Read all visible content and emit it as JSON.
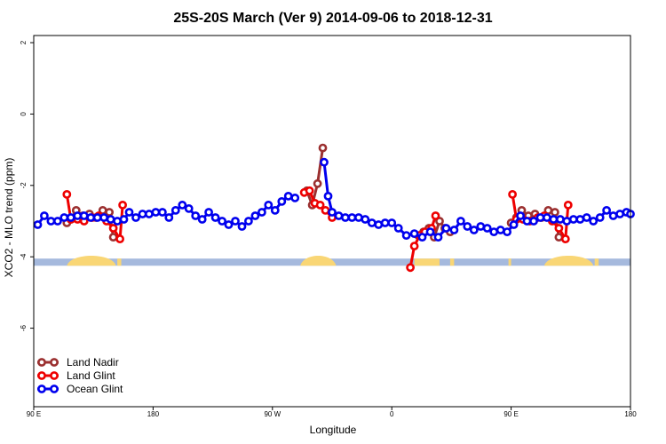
{
  "chart_data": {
    "type": "line",
    "title": "25S-20S March (Ver 9)   2014-09-06 to 2018-12-31",
    "xlabel": "Longitude",
    "ylabel": "XCO2 - MLO trend (ppm)",
    "xlim": [
      90,
      540
    ],
    "ylim": [
      -8.2,
      2.2
    ],
    "x_ticks": [
      {
        "value": 90,
        "label": "90 E"
      },
      {
        "value": 180,
        "label": "180"
      },
      {
        "value": 270,
        "label": "90 W"
      },
      {
        "value": 360,
        "label": "0"
      },
      {
        "value": 450,
        "label": "90 E"
      },
      {
        "value": 540,
        "label": "180"
      }
    ],
    "y_ticks": [
      {
        "value": 2,
        "label": "2"
      },
      {
        "value": 0,
        "label": "0"
      },
      {
        "value": -2,
        "label": "-2"
      },
      {
        "value": -4,
        "label": "-4"
      },
      {
        "value": -6,
        "label": "-6"
      }
    ],
    "legend_position": "bottom-left",
    "land_sea_band": {
      "y_top": -4.05,
      "y_bottom": -4.25,
      "ocean_color": "#a5b9dd",
      "land_color": "#f9d675",
      "land_segments": [
        {
          "x0": 115,
          "x1": 152,
          "shape": "bump"
        },
        {
          "x0": 153,
          "x1": 156,
          "shape": "flat"
        },
        {
          "x0": 291,
          "x1": 318,
          "shape": "bump"
        },
        {
          "x0": 377,
          "x1": 396,
          "shape": "flat"
        },
        {
          "x0": 404,
          "x1": 407,
          "shape": "flat"
        },
        {
          "x0": 448,
          "x1": 450,
          "shape": "flat"
        },
        {
          "x0": 115,
          "x1": 152,
          "shape": "bump",
          "offset": 360
        },
        {
          "x0": 153,
          "x1": 156,
          "shape": "flat",
          "offset": 360
        }
      ]
    },
    "series": [
      {
        "name": "Land Nadir",
        "color": "#9b3030",
        "segments": [
          [
            [
              115,
              -3.05
            ],
            [
              118,
              -2.95
            ],
            [
              122,
              -2.7
            ],
            [
              127,
              -2.85
            ],
            [
              132,
              -2.8
            ],
            [
              137,
              -2.9
            ],
            [
              142,
              -2.7
            ],
            [
              147,
              -2.75
            ],
            [
              150,
              -3.45
            ]
          ],
          [
            [
              296,
              -2.15
            ],
            [
              300,
              -2.55
            ],
            [
              304,
              -1.95
            ],
            [
              308,
              -0.95
            ]
          ],
          [
            [
              380,
              -3.4
            ],
            [
              384,
              -3.3
            ],
            [
              388,
              -3.2
            ],
            [
              392,
              -3.45
            ],
            [
              396,
              -3.0
            ],
            [
              400,
              -3.2
            ],
            [
              404,
              -3.3
            ]
          ],
          [
            [
              450,
              -3.05
            ],
            [
              454,
              -2.9
            ],
            [
              458,
              -2.7
            ],
            [
              463,
              -2.85
            ],
            [
              468,
              -2.8
            ],
            [
              473,
              -2.9
            ],
            [
              478,
              -2.7
            ],
            [
              483,
              -2.75
            ],
            [
              486,
              -3.45
            ]
          ]
        ]
      },
      {
        "name": "Land Glint",
        "color": "#ee0000",
        "segments": [
          [
            [
              115,
              -2.25
            ],
            [
              118,
              -2.95
            ],
            [
              123,
              -2.95
            ],
            [
              128,
              -3.0
            ],
            [
              134,
              -2.9
            ],
            [
              139,
              -2.85
            ],
            [
              145,
              -3.0
            ],
            [
              150,
              -3.2
            ],
            [
              155,
              -3.5
            ],
            [
              157,
              -2.55
            ]
          ],
          [
            [
              294,
              -2.2
            ],
            [
              298,
              -2.15
            ],
            [
              302,
              -2.5
            ],
            [
              306,
              -2.55
            ],
            [
              310,
              -2.7
            ],
            [
              315,
              -2.9
            ]
          ],
          [
            [
              374,
              -4.3
            ],
            [
              377,
              -3.7
            ],
            [
              381,
              -3.4
            ],
            [
              385,
              -3.3
            ],
            [
              390,
              -3.2
            ],
            [
              393,
              -2.85
            ]
          ],
          [
            [
              451,
              -2.25
            ],
            [
              454,
              -2.95
            ],
            [
              459,
              -2.95
            ],
            [
              464,
              -3.0
            ],
            [
              470,
              -2.9
            ],
            [
              475,
              -2.85
            ],
            [
              481,
              -3.0
            ],
            [
              486,
              -3.2
            ],
            [
              491,
              -3.5
            ],
            [
              493,
              -2.55
            ]
          ]
        ]
      },
      {
        "name": "Ocean Glint",
        "color": "#0000ee",
        "segments": [
          [
            [
              93,
              -3.1
            ],
            [
              98,
              -2.85
            ],
            [
              103,
              -3.0
            ],
            [
              108,
              -3.0
            ],
            [
              113,
              -2.9
            ],
            [
              118,
              -2.9
            ],
            [
              123,
              -2.85
            ],
            [
              128,
              -2.85
            ],
            [
              133,
              -2.9
            ],
            [
              138,
              -2.9
            ],
            [
              143,
              -2.9
            ],
            [
              148,
              -2.95
            ],
            [
              153,
              -3.0
            ],
            [
              158,
              -2.95
            ],
            [
              162,
              -2.75
            ],
            [
              167,
              -2.9
            ],
            [
              172,
              -2.8
            ],
            [
              177,
              -2.8
            ],
            [
              182,
              -2.75
            ],
            [
              187,
              -2.75
            ],
            [
              192,
              -2.9
            ],
            [
              197,
              -2.7
            ],
            [
              202,
              -2.55
            ],
            [
              207,
              -2.65
            ],
            [
              212,
              -2.85
            ],
            [
              217,
              -2.95
            ],
            [
              222,
              -2.75
            ],
            [
              227,
              -2.9
            ],
            [
              232,
              -3.0
            ],
            [
              237,
              -3.1
            ],
            [
              242,
              -3.0
            ],
            [
              247,
              -3.15
            ],
            [
              252,
              -3.0
            ],
            [
              257,
              -2.85
            ],
            [
              262,
              -2.75
            ],
            [
              267,
              -2.55
            ],
            [
              272,
              -2.7
            ],
            [
              277,
              -2.45
            ],
            [
              282,
              -2.3
            ],
            [
              287,
              -2.35
            ]
          ],
          [
            [
              309,
              -1.35
            ],
            [
              312,
              -2.3
            ],
            [
              315,
              -2.75
            ],
            [
              320,
              -2.85
            ],
            [
              325,
              -2.9
            ],
            [
              330,
              -2.9
            ],
            [
              335,
              -2.9
            ],
            [
              340,
              -2.95
            ],
            [
              345,
              -3.05
            ],
            [
              350,
              -3.1
            ],
            [
              355,
              -3.05
            ],
            [
              360,
              -3.05
            ],
            [
              365,
              -3.2
            ],
            [
              371,
              -3.4
            ],
            [
              377,
              -3.35
            ],
            [
              383,
              -3.45
            ],
            [
              389,
              -3.3
            ],
            [
              395,
              -3.45
            ],
            [
              401,
              -3.2
            ],
            [
              407,
              -3.25
            ],
            [
              412,
              -3.0
            ],
            [
              417,
              -3.15
            ],
            [
              422,
              -3.25
            ],
            [
              427,
              -3.15
            ],
            [
              432,
              -3.2
            ],
            [
              437,
              -3.3
            ],
            [
              442,
              -3.25
            ],
            [
              447,
              -3.3
            ],
            [
              452,
              -3.1
            ],
            [
              457,
              -2.85
            ],
            [
              462,
              -3.0
            ],
            [
              467,
              -3.0
            ],
            [
              472,
              -2.9
            ],
            [
              477,
              -2.9
            ],
            [
              482,
              -2.95
            ],
            [
              487,
              -2.95
            ],
            [
              492,
              -3.0
            ],
            [
              497,
              -2.95
            ],
            [
              502,
              -2.95
            ],
            [
              507,
              -2.9
            ],
            [
              512,
              -3.0
            ],
            [
              517,
              -2.9
            ],
            [
              522,
              -2.7
            ],
            [
              527,
              -2.85
            ],
            [
              532,
              -2.8
            ],
            [
              537,
              -2.75
            ],
            [
              540,
              -2.8
            ]
          ]
        ]
      }
    ]
  }
}
